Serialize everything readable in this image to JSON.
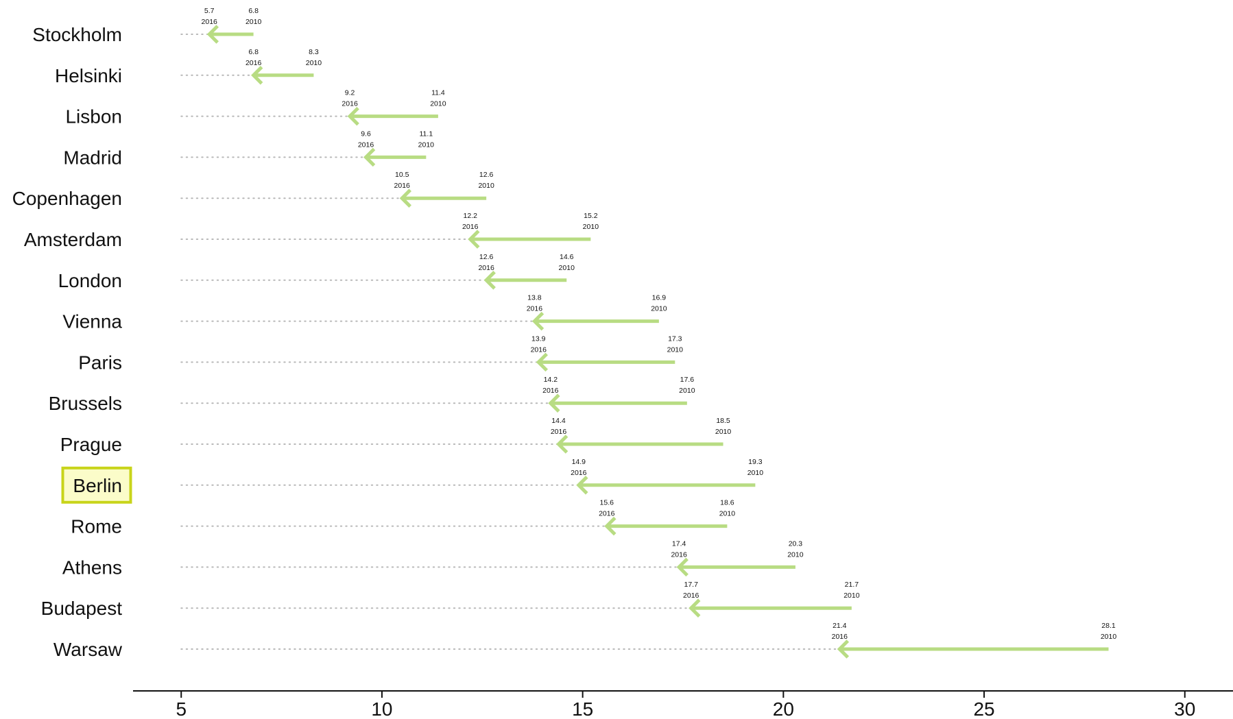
{
  "chart_data": {
    "type": "arrow-dot",
    "orientation": "horizontal",
    "categories": [
      "Stockholm",
      "Helsinki",
      "Lisbon",
      "Madrid",
      "Copenhagen",
      "Amsterdam",
      "London",
      "Vienna",
      "Paris",
      "Brussels",
      "Prague",
      "Berlin",
      "Rome",
      "Athens",
      "Budapest",
      "Warsaw"
    ],
    "series": [
      {
        "name": "2010",
        "values": [
          6.8,
          8.3,
          11.4,
          11.1,
          12.6,
          15.2,
          14.6,
          16.9,
          17.3,
          17.6,
          18.5,
          19.3,
          18.6,
          20.3,
          21.7,
          28.1
        ]
      },
      {
        "name": "2016",
        "values": [
          5.7,
          6.8,
          9.2,
          9.6,
          10.5,
          12.2,
          12.6,
          13.8,
          13.9,
          14.2,
          14.4,
          14.9,
          15.6,
          17.4,
          17.7,
          21.4
        ]
      }
    ],
    "value_labels_2010": [
      "6.8",
      "8.3",
      "11.4",
      "11.1",
      "12.6",
      "15.2",
      "14.6",
      "16.9",
      "17.3",
      "17.6",
      "18.5",
      "19.3",
      "18.6",
      "20.3",
      "21.7",
      "28.1"
    ],
    "value_labels_2016": [
      "5.7",
      "6.8",
      "9.2",
      "9.6",
      "10.5",
      "12.2",
      "12.6",
      "13.8",
      "13.9",
      "14.2",
      "14.4",
      "14.9",
      "15.6",
      "17.4",
      "17.7",
      "21.4"
    ],
    "x_ticks": [
      5,
      10,
      15,
      20,
      25,
      30
    ],
    "x_tick_labels": [
      "5",
      "10",
      "15",
      "20",
      "25",
      "30"
    ],
    "xlim": [
      3.8,
      31.2
    ],
    "highlighted_category": "Berlin",
    "grid": false,
    "legend": "none",
    "colors": {
      "arrow": "#b8dc83",
      "dotted_guide": "#b8b8b8",
      "highlight_border": "#c8d41a",
      "highlight_fill": "#fbfcc9",
      "axis": "#111111",
      "text": "#111111"
    }
  }
}
